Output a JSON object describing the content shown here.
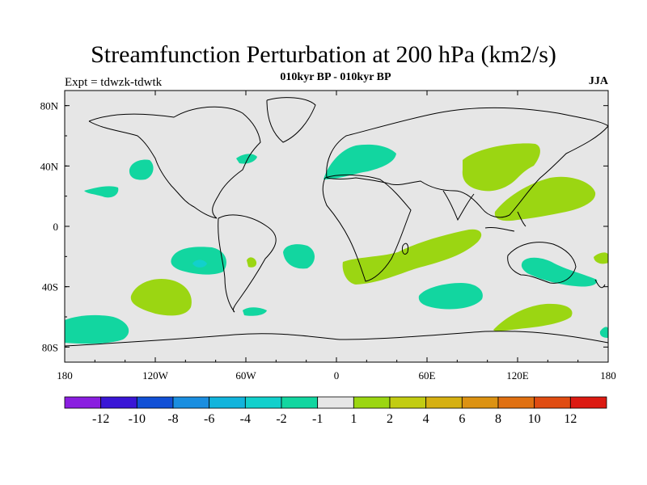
{
  "title": "Streamfunction Perturbation at 200 hPa (km2/s)",
  "subtitle": "010kyr BP - 010kyr BP",
  "expt_label": "Expt = tdwzk-tdwtk",
  "season": "JJA",
  "x_ticks": [
    {
      "value": -180,
      "label": "180"
    },
    {
      "value": -120,
      "label": "120W"
    },
    {
      "value": -60,
      "label": "60W"
    },
    {
      "value": 0,
      "label": "0"
    },
    {
      "value": 60,
      "label": "60E"
    },
    {
      "value": 120,
      "label": "120E"
    },
    {
      "value": 180,
      "label": "180"
    }
  ],
  "y_ticks": [
    {
      "value": 80,
      "label": "80N"
    },
    {
      "value": 40,
      "label": "40N"
    },
    {
      "value": 0,
      "label": "0"
    },
    {
      "value": -40,
      "label": "40S"
    },
    {
      "value": -80,
      "label": "80S"
    }
  ],
  "colorbar": {
    "colors": [
      "#8a1ee0",
      "#3a16d6",
      "#1250d6",
      "#1a8ee0",
      "#12b4dc",
      "#12d0cc",
      "#12d6a0",
      "#e6e6e6",
      "#9bd612",
      "#c2cc12",
      "#d6b012",
      "#dc9212",
      "#e07012",
      "#e04c12",
      "#dc1a12"
    ],
    "labels": [
      "-12",
      "-10",
      "-8",
      "-6",
      "-4",
      "-2",
      "-1",
      "1",
      "2",
      "4",
      "6",
      "8",
      "10",
      "12"
    ]
  },
  "colors": {
    "background": "#e6e6e6",
    "negative": "#12d6a0",
    "negative_strong": "#12d0cc",
    "positive": "#9bd612"
  }
}
